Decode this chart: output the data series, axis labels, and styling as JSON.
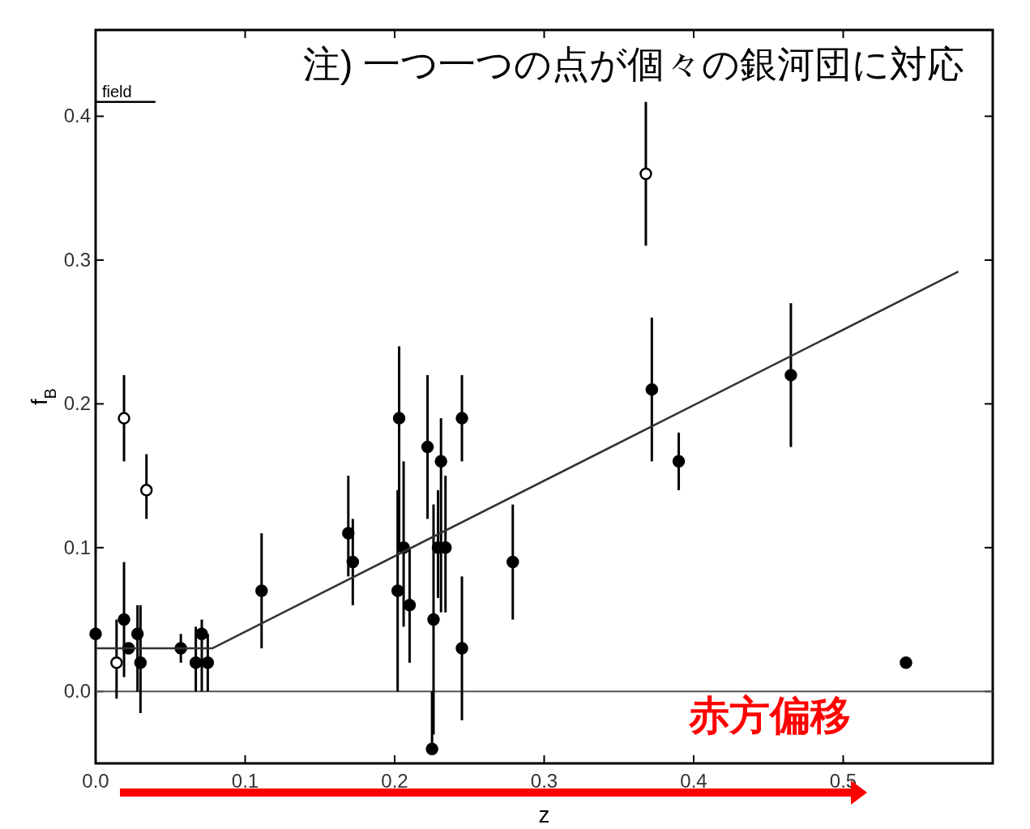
{
  "chart_data": {
    "type": "scatter",
    "xlabel": "z",
    "ylabel": "f$_{B}$",
    "xlim": [
      0,
      0.6
    ],
    "ylim": [
      -0.05,
      0.46
    ],
    "xticks": [
      {
        "value": 0,
        "label": "0.0"
      },
      {
        "value": 0.1,
        "label": "0.1"
      },
      {
        "value": 0.2,
        "label": "0.2"
      },
      {
        "value": 0.3,
        "label": "0.3"
      },
      {
        "value": 0.4,
        "label": "0.4"
      },
      {
        "value": 0.5,
        "label": "0.5"
      }
    ],
    "yticks": [
      {
        "value": 0,
        "label": "0.0"
      },
      {
        "value": 0.1,
        "label": "0.1"
      },
      {
        "value": 0.2,
        "label": "0.2"
      },
      {
        "value": 0.3,
        "label": "0.3"
      },
      {
        "value": 0.4,
        "label": "0.4"
      }
    ],
    "grid": false,
    "ref_lines": [
      {
        "axis": "y",
        "value": 0,
        "color": "#555555"
      }
    ],
    "annotations": [
      "注) 一つ一つの点が個々の銀河団に対応",
      "赤方偏移"
    ],
    "series": [
      {
        "marker": "circle",
        "color": "#000000",
        "x": [
          0.0,
          0.019,
          0.022,
          0.028,
          0.03,
          0.057,
          0.067,
          0.071,
          0.075,
          0.111,
          0.169,
          0.172,
          0.203,
          0.202,
          0.206,
          0.21,
          0.222,
          0.231,
          0.226,
          0.229,
          0.234,
          0.225,
          0.245,
          0.245,
          0.279,
          0.372,
          0.39,
          0.465,
          0.542
        ],
        "values": [
          0.04,
          0.05,
          0.03,
          0.04,
          0.02,
          0.03,
          0.02,
          0.04,
          0.02,
          0.07,
          0.11,
          0.09,
          0.19,
          0.07,
          0.1,
          0.06,
          0.17,
          0.16,
          0.05,
          0.1,
          0.1,
          -0.04,
          0.19,
          0.03,
          0.09,
          0.21,
          0.16,
          0.22,
          0.02
        ],
        "errors": [
          null,
          [
            0.01,
            0.09
          ],
          null,
          [
            0.0,
            0.06
          ],
          [
            -0.015,
            0.06
          ],
          [
            0.02,
            0.04
          ],
          [
            0.0,
            0.045
          ],
          [
            0.0,
            0.05
          ],
          [
            0.0,
            0.04
          ],
          [
            0.03,
            0.11
          ],
          [
            0.08,
            0.15
          ],
          [
            0.06,
            0.12
          ],
          [
            0.1,
            0.24
          ],
          [
            0.0,
            0.14
          ],
          [
            0.045,
            0.16
          ],
          [
            0.02,
            0.1
          ],
          [
            0.12,
            0.22
          ],
          [
            0.055,
            0.19
          ],
          [
            -0.03,
            0.13
          ],
          [
            0.065,
            0.14
          ],
          [
            0.055,
            0.15
          ],
          [
            -0.04,
            0.0
          ],
          [
            0.16,
            0.22
          ],
          [
            -0.02,
            0.08
          ],
          [
            0.05,
            0.13
          ],
          [
            0.16,
            0.26
          ],
          [
            0.14,
            0.18
          ],
          [
            0.17,
            0.27
          ],
          null
        ]
      },
      {
        "marker": "circle",
        "color": "#ffffff",
        "x": [
          0.014,
          0.019,
          0.034,
          0.368
        ],
        "values": [
          0.02,
          0.19,
          0.14,
          0.36
        ],
        "errors": [
          [
            -0.005,
            0.05
          ],
          [
            0.16,
            0.22
          ],
          [
            0.12,
            0.165
          ],
          [
            0.31,
            0.41
          ]
        ]
      },
      {
        "type": "line",
        "marker": "none",
        "color": "#333333",
        "x": [
          0,
          0.078,
          0.577
        ],
        "values": [
          0.03,
          0.03,
          0.292
        ]
      },
      {
        "type": "line",
        "marker": "none",
        "name": "field",
        "color": "#000000",
        "x": [
          0,
          0.04
        ],
        "values": [
          0.41,
          0.41
        ]
      }
    ]
  }
}
